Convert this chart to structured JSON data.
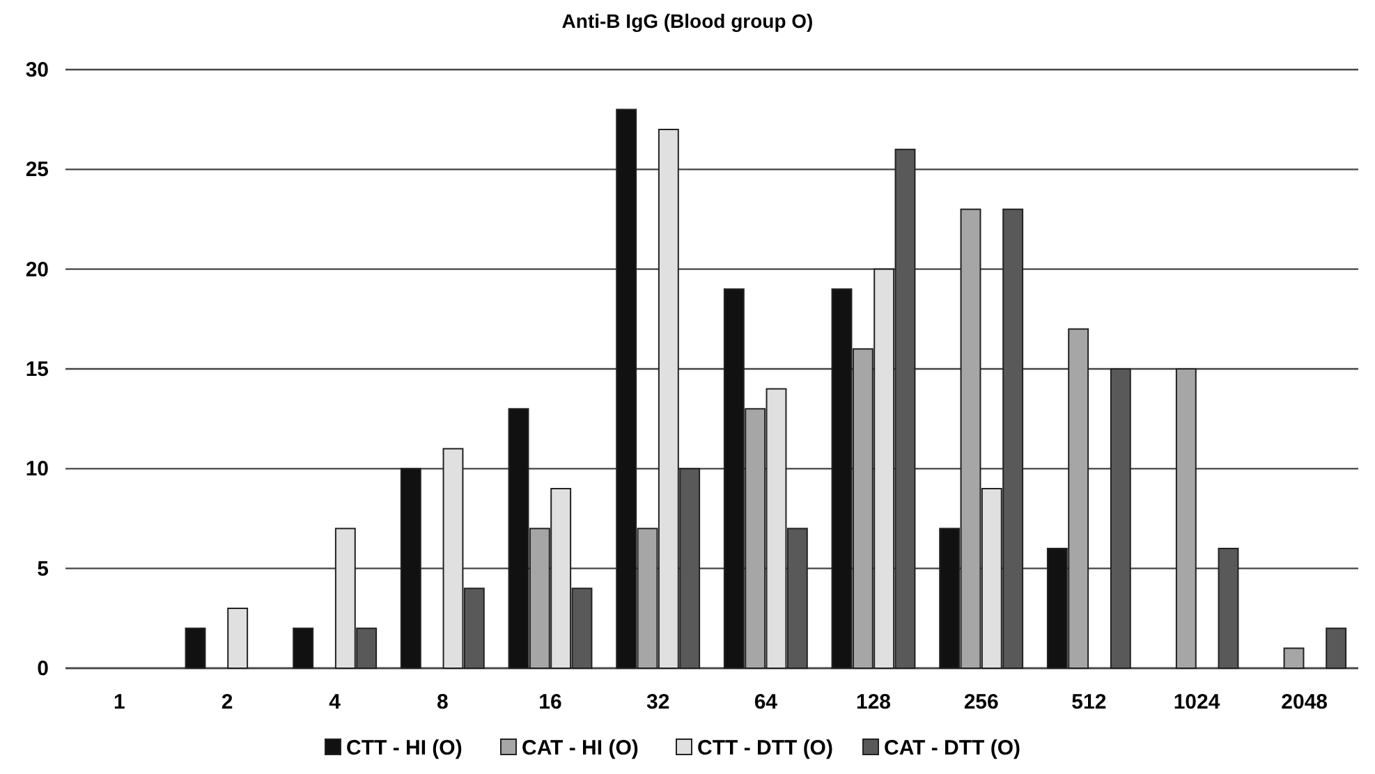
{
  "chart_data": {
    "type": "bar",
    "title": "Anti-B IgG (Blood group O)",
    "categories": [
      "1",
      "2",
      "4",
      "8",
      "16",
      "32",
      "64",
      "128",
      "256",
      "512",
      "1024",
      "2048"
    ],
    "series": [
      {
        "name": "CTT - HI (O)",
        "color": "#111111",
        "values": [
          null,
          2,
          2,
          10,
          13,
          28,
          19,
          19,
          7,
          6,
          null,
          null
        ]
      },
      {
        "name": "CAT - HI (O)",
        "color": "#a6a6a6",
        "values": [
          null,
          null,
          null,
          null,
          7,
          7,
          13,
          16,
          23,
          17,
          15,
          1
        ]
      },
      {
        "name": "CTT - DTT (O)",
        "color": "#e0e0e0",
        "values": [
          null,
          3,
          7,
          11,
          9,
          27,
          14,
          20,
          9,
          null,
          null,
          null
        ]
      },
      {
        "name": "CAT - DTT (O)",
        "color": "#595959",
        "values": [
          null,
          null,
          2,
          4,
          4,
          10,
          7,
          26,
          23,
          15,
          6,
          2
        ]
      }
    ],
    "ylim": [
      0,
      30
    ],
    "yticks": [
      0,
      5,
      10,
      15,
      20,
      25,
      30
    ],
    "grid": "y",
    "legend": "bottom"
  }
}
